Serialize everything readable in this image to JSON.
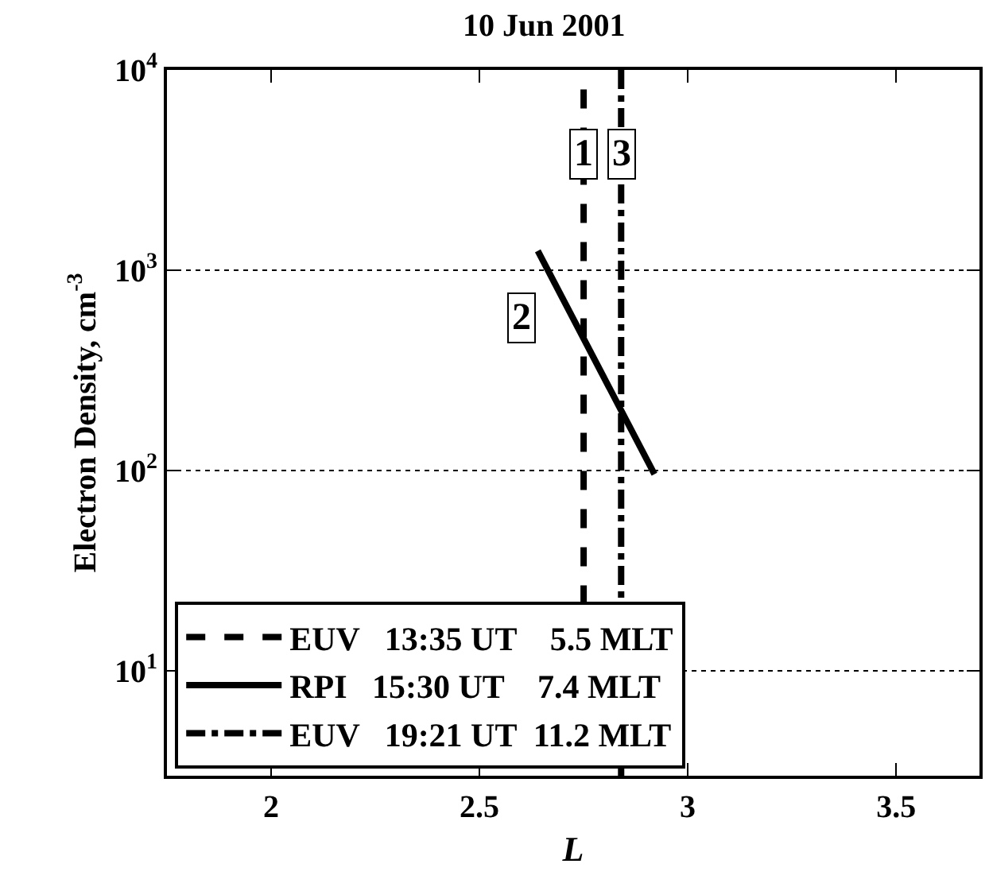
{
  "chart_data": {
    "type": "line",
    "title": "10 Jun 2001",
    "xlabel": "L",
    "ylabel": "Electron Density, cm$^{-3}$",
    "series": [
      {
        "name": "EUV   13:35 UT    5.5 MLT",
        "color": "#000000",
        "line_style": "dashed",
        "x": [
          2.75,
          2.75
        ],
        "values": [
          8000,
          3
        ]
      },
      {
        "name": "RPI   15:30 UT    7.4 MLT",
        "color": "#000000",
        "line_style": "solid",
        "x": [
          2.64,
          2.92
        ],
        "values": [
          1250,
          96
        ]
      },
      {
        "name": "EUV   19:21 UT  11.2 MLT",
        "color": "#000000",
        "line_style": "dashdot",
        "x": [
          2.84,
          2.84
        ],
        "values": [
          3,
          10000
        ]
      }
    ],
    "annotations": [
      {
        "text": "1",
        "x": 2.75,
        "y": 3800
      },
      {
        "text": "2",
        "x": 2.6,
        "y": 580
      },
      {
        "text": "3",
        "x": 2.84,
        "y": 3800
      }
    ],
    "log": "y",
    "xlim": [
      1.75,
      3.7
    ],
    "ylim": [
      3,
      10000
    ],
    "xticks": [
      2,
      2.5,
      3,
      3.5
    ],
    "yticks": [
      {
        "value": 10,
        "label": "10$^{1}$"
      },
      {
        "value": 100,
        "label": "10$^{2}$"
      },
      {
        "value": 1000,
        "label": "10$^{3}$"
      },
      {
        "value": 10000,
        "label": "10$^{4}$"
      }
    ],
    "grid": "y",
    "legend": "bottom left",
    "marker": "none"
  }
}
